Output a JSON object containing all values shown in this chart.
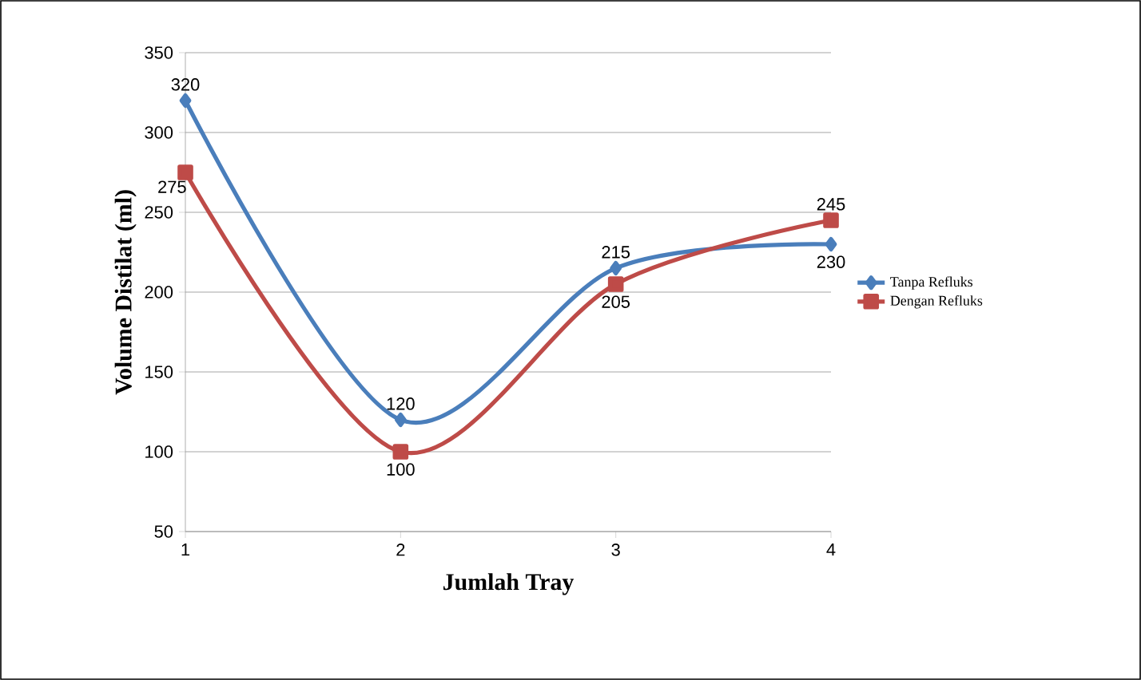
{
  "chart_data": {
    "type": "line",
    "xlabel": "Jumlah Tray",
    "ylabel": "Volume Distilat (ml)",
    "categories": [
      "1",
      "2",
      "3",
      "4"
    ],
    "series": [
      {
        "name": "Tanpa Refluks",
        "color": "#4a7ebb",
        "marker": "diamond",
        "values": [
          320,
          120,
          215,
          230
        ]
      },
      {
        "name": "Dengan Refluks",
        "color": "#be4b48",
        "marker": "square",
        "values": [
          275,
          100,
          205,
          245
        ]
      }
    ],
    "ylim": [
      50,
      350
    ],
    "yticks": [
      50,
      100,
      150,
      200,
      250,
      300,
      350
    ],
    "grid": "y",
    "legend": "right",
    "data_labels": true,
    "line_style": "solid"
  }
}
